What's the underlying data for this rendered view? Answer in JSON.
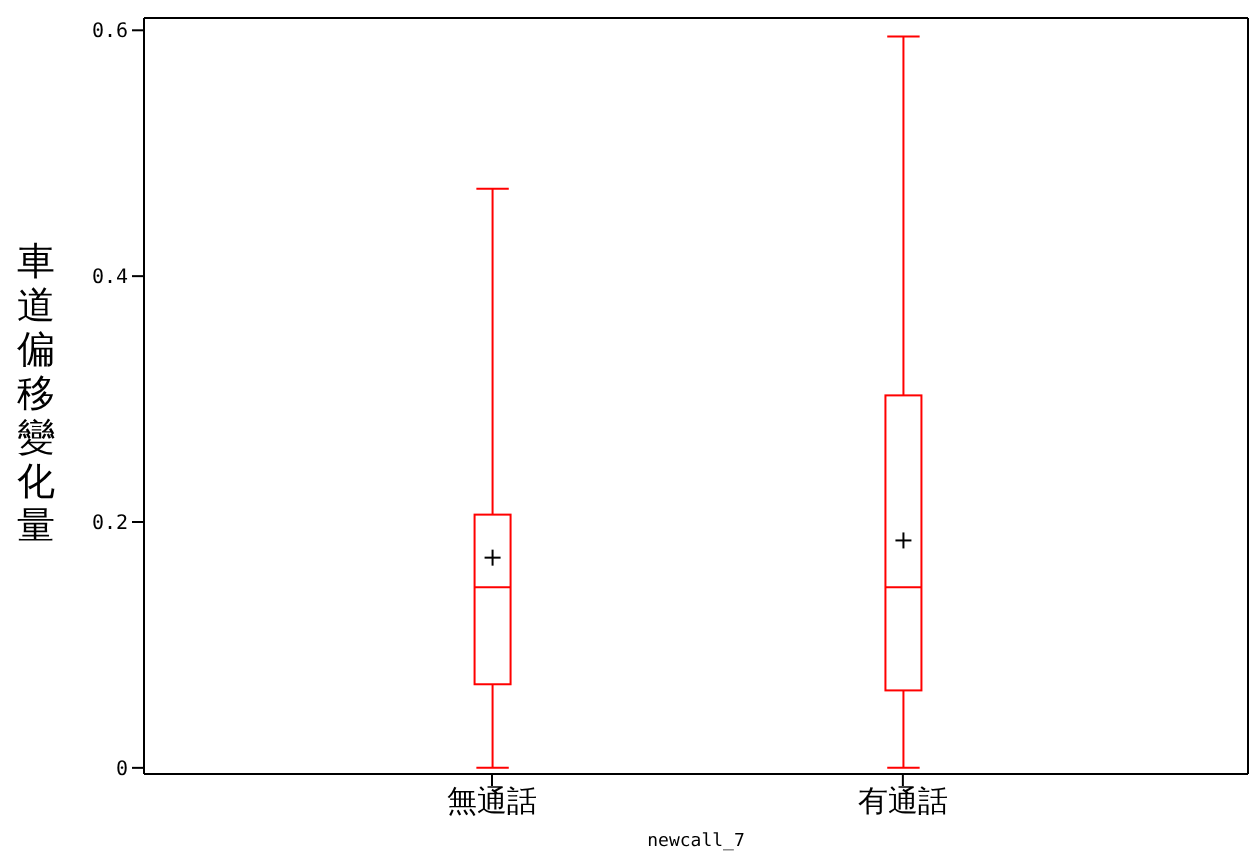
{
  "chart_data": {
    "type": "box",
    "xlabel": "newcall_7",
    "ylabel": "車道偏移變化量",
    "categories": [
      "無通話",
      "有通話"
    ],
    "color": "#ff0000",
    "boxes": [
      {
        "low": 0,
        "q1": 0.068,
        "median": 0.147,
        "q3": 0.206,
        "high": 0.471,
        "mean": 0.171
      },
      {
        "low": 0,
        "q1": 0.063,
        "median": 0.147,
        "q3": 0.303,
        "high": 0.595,
        "mean": 0.185
      }
    ],
    "ylim": [
      -0.005,
      0.61
    ],
    "yticks": [
      0,
      0.2,
      0.4,
      0.6
    ]
  }
}
